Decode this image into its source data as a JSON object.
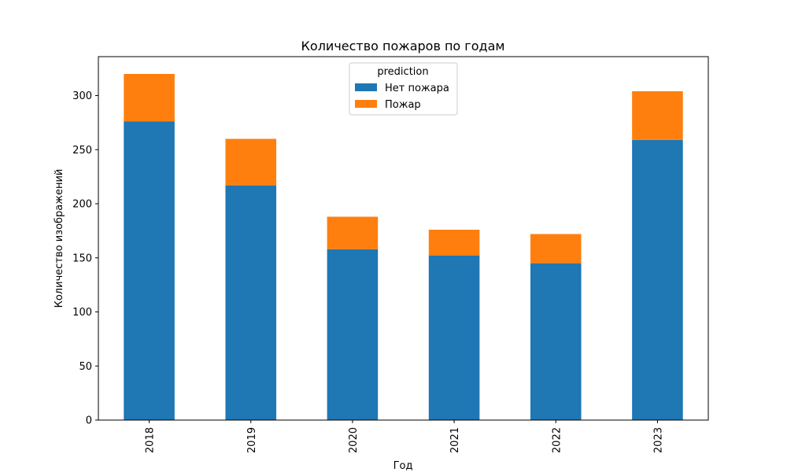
{
  "chart_data": {
    "type": "bar",
    "stacked": true,
    "title": "Количество пожаров по годам",
    "xlabel": "Год",
    "ylabel": "Количество изображений",
    "categories": [
      "2018",
      "2019",
      "2020",
      "2021",
      "2022",
      "2023"
    ],
    "series": [
      {
        "name": "Нет пожара",
        "color": "#1f77b4",
        "values": [
          276,
          217,
          158,
          152,
          145,
          259
        ]
      },
      {
        "name": "Пожар",
        "color": "#ff7f0e",
        "values": [
          44,
          43,
          30,
          24,
          27,
          45
        ]
      }
    ],
    "ylim": [
      0,
      336
    ],
    "yticks": [
      0,
      50,
      100,
      150,
      200,
      250,
      300
    ],
    "legend": {
      "title": "prediction",
      "placement": "top-center"
    },
    "grid": false
  }
}
